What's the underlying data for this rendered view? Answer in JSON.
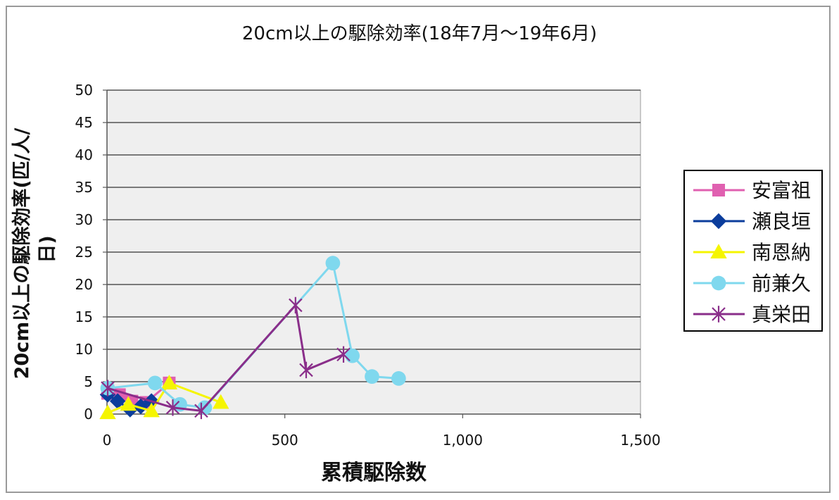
{
  "chart_data": {
    "type": "line",
    "title": "20cm以上の駆除効率(18年7月～19年6月)",
    "xlabel": "累積駆除数",
    "ylabel_line1": "20cm以上の駆除効率(匹/人/",
    "ylabel_line2": "日)",
    "xlim": [
      0,
      1500
    ],
    "ylim": [
      0,
      50
    ],
    "x_ticks": [
      {
        "value": 0,
        "label": "0"
      },
      {
        "value": 500,
        "label": "500"
      },
      {
        "value": 1000,
        "label": "1,000"
      },
      {
        "value": 1500,
        "label": "1,500"
      }
    ],
    "y_ticks": [
      {
        "value": 0,
        "label": "0"
      },
      {
        "value": 5,
        "label": "5"
      },
      {
        "value": 10,
        "label": "10"
      },
      {
        "value": 15,
        "label": "15"
      },
      {
        "value": 20,
        "label": "20"
      },
      {
        "value": 25,
        "label": "25"
      },
      {
        "value": 30,
        "label": "30"
      },
      {
        "value": 35,
        "label": "35"
      },
      {
        "value": 40,
        "label": "40"
      },
      {
        "value": 45,
        "label": "45"
      },
      {
        "value": 50,
        "label": "50"
      }
    ],
    "grid": "horizontal",
    "legend_position": "right",
    "series": [
      {
        "name": "安富祖",
        "color": "#e060b0",
        "marker": "square",
        "x": [
          2,
          35,
          70,
          110,
          175
        ],
        "y": [
          3.2,
          3.0,
          2.0,
          1.8,
          4.8
        ]
      },
      {
        "name": "瀬良垣",
        "color": "#0b3d9c",
        "marker": "diamond",
        "x": [
          2,
          30,
          65,
          95,
          125
        ],
        "y": [
          3.0,
          2.0,
          0.7,
          1.2,
          2.0
        ]
      },
      {
        "name": "南恩納",
        "color": "#f5f500",
        "marker": "triangle",
        "x": [
          2,
          60,
          125,
          175,
          320
        ],
        "y": [
          0.2,
          1.5,
          0.5,
          4.8,
          1.8
        ]
      },
      {
        "name": "前兼久",
        "color": "#7fd8ee",
        "marker": "circle",
        "x": [
          2,
          135,
          205,
          275,
          635,
          690,
          745,
          820
        ],
        "y": [
          4.0,
          4.8,
          1.5,
          1.0,
          23.3,
          9.0,
          5.8,
          5.5
        ]
      },
      {
        "name": "真栄田",
        "color": "#8a2e8a",
        "marker": "star",
        "x": [
          2,
          185,
          265,
          530,
          560,
          665
        ],
        "y": [
          4.0,
          1.0,
          0.5,
          16.8,
          6.8,
          9.2
        ]
      }
    ]
  }
}
